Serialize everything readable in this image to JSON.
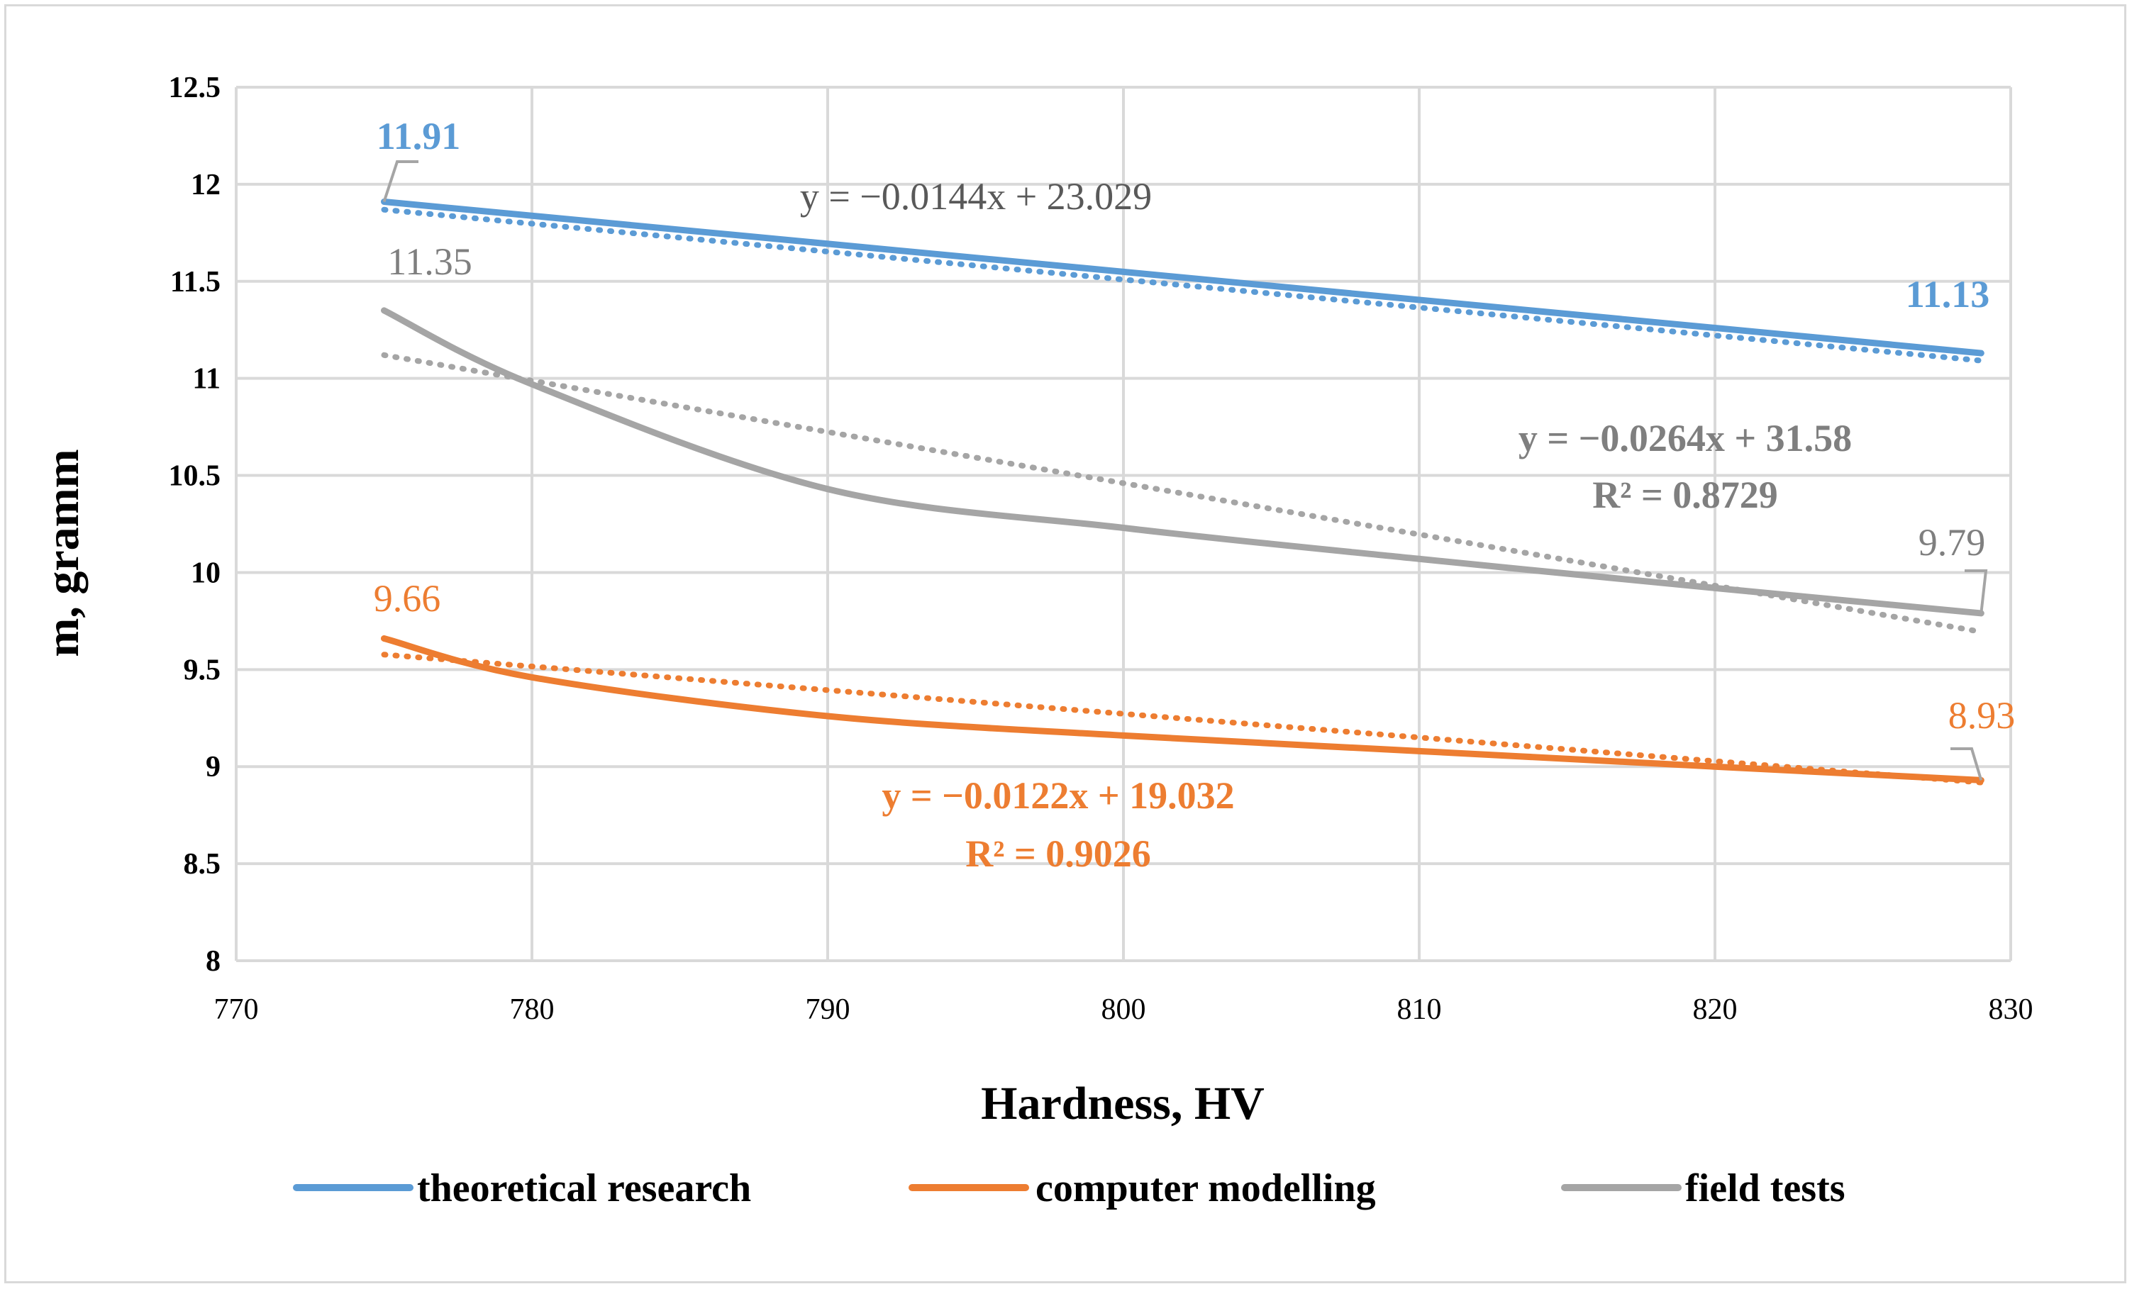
{
  "chart_data": {
    "type": "line",
    "title": "",
    "xlabel": "Hardness, HV",
    "ylabel": "m, gramm",
    "xlim": [
      770,
      830
    ],
    "ylim": [
      8,
      12.5
    ],
    "xticks": [
      "770",
      "780",
      "790",
      "800",
      "810",
      "820",
      "830"
    ],
    "yticks": [
      "8",
      "8.5",
      "9",
      "9.5",
      "10",
      "10.5",
      "11",
      "11.5",
      "12",
      "12.5"
    ],
    "grid": true,
    "legend_position": "bottom",
    "series": [
      {
        "name": "theoretical research",
        "color": "#5b9bd5",
        "x": [
          775,
          829
        ],
        "y": [
          11.91,
          11.13
        ],
        "trendline": {
          "slope": -0.0144,
          "intercept": 23.029,
          "equation": "y = −0.0144x + 23.029",
          "r2": ""
        }
      },
      {
        "name": "computer modelling",
        "color": "#ed7d31",
        "x": [
          775,
          780,
          790,
          800,
          810,
          820,
          829
        ],
        "y": [
          9.66,
          9.46,
          9.26,
          9.16,
          9.08,
          9.0,
          8.93
        ],
        "trendline": {
          "slope": -0.0122,
          "intercept": 19.032,
          "equation": "y = −0.0122x + 19.032",
          "r2": "R² = 0.9026"
        }
      },
      {
        "name": "field tests",
        "color": "#a5a5a5",
        "x": [
          775,
          780,
          790,
          800,
          810,
          820,
          829
        ],
        "y": [
          11.35,
          10.97,
          10.43,
          10.23,
          10.07,
          9.92,
          9.79
        ],
        "trendline": {
          "slope": -0.0264,
          "intercept": 31.58,
          "equation": "y = −0.0264x + 31.58",
          "r2": "R² = 0.8729"
        }
      }
    ],
    "data_labels": [
      {
        "text": "11.91",
        "series": 0
      },
      {
        "text": "11.13",
        "series": 0
      },
      {
        "text": "9.66",
        "series": 1
      },
      {
        "text": "8.93",
        "series": 1
      },
      {
        "text": "11.35",
        "series": 2
      },
      {
        "text": "9.79",
        "series": 2
      }
    ]
  }
}
